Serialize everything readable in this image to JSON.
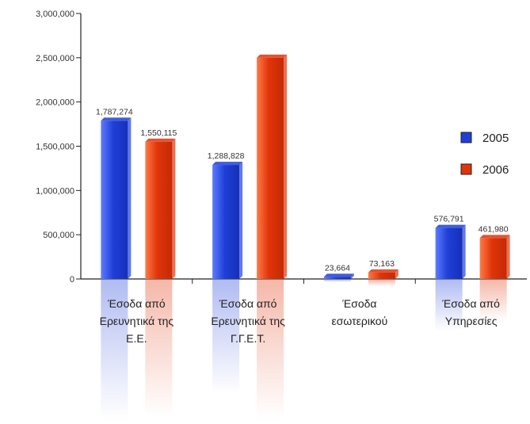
{
  "chart_data": {
    "type": "bar",
    "title": "",
    "xlabel": "",
    "ylabel": "",
    "ylim": [
      0,
      3000000
    ],
    "yticks": [
      {
        "value": 0,
        "label": "0"
      },
      {
        "value": 500000,
        "label": "500,000"
      },
      {
        "value": 1000000,
        "label": "1,000,000"
      },
      {
        "value": 1500000,
        "label": "1,500,000"
      },
      {
        "value": 2000000,
        "label": "2,000,000"
      },
      {
        "value": 2500000,
        "label": "2,500,000"
      },
      {
        "value": 3000000,
        "label": "3,000,000"
      }
    ],
    "categories": [
      [
        "Έσοδα από",
        "Ερευνητικά της",
        "Ε.Ε."
      ],
      [
        "Έσοδα από",
        "Ερευνητικά της",
        "Γ.Γ.Ε.Τ."
      ],
      [
        "Έσοδα",
        "εσωτερικού"
      ],
      [
        "Έσοδα από",
        "Υπηρεσίες"
      ]
    ],
    "series": [
      {
        "name": "2005",
        "color": "#1f3fd8",
        "values": [
          1787274,
          1288828,
          23664,
          576791
        ],
        "labels": [
          "1,787,274",
          "1,288,828",
          "23,664",
          "576,791"
        ]
      },
      {
        "name": "2006",
        "color": "#e0340a",
        "values": [
          1550115,
          2500000,
          73163,
          461980
        ],
        "labels": [
          "1,550,115",
          "",
          "73,163",
          "461,980"
        ]
      }
    ],
    "legend": "right",
    "grid": false
  }
}
